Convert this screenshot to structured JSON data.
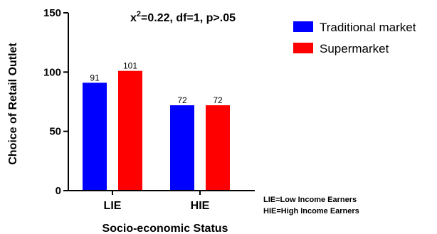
{
  "chart_data": {
    "type": "bar",
    "categories": [
      "LIE",
      "HIE"
    ],
    "series": [
      {
        "name": "Traditional market",
        "values": [
          91,
          72
        ],
        "color": "#0000FF"
      },
      {
        "name": "Supermarket",
        "values": [
          101,
          72
        ],
        "color": "#FF0000"
      }
    ],
    "data_labels": [
      [
        "91",
        "72"
      ],
      [
        "101",
        "72"
      ]
    ],
    "xlabel": "Socio-economic Status",
    "ylabel": "Choice of Retail Outlet",
    "ylim": [
      0,
      150
    ],
    "yticks": [
      0,
      50,
      100,
      150
    ],
    "grid": false,
    "legend_position": "top-right",
    "annotation": {
      "prefix": "x",
      "superscript": "2",
      "rest": "=0.22, df=1, p>.05"
    },
    "notes": [
      "LIE=Low Income Earners",
      "HIE=High Income Earners"
    ]
  }
}
